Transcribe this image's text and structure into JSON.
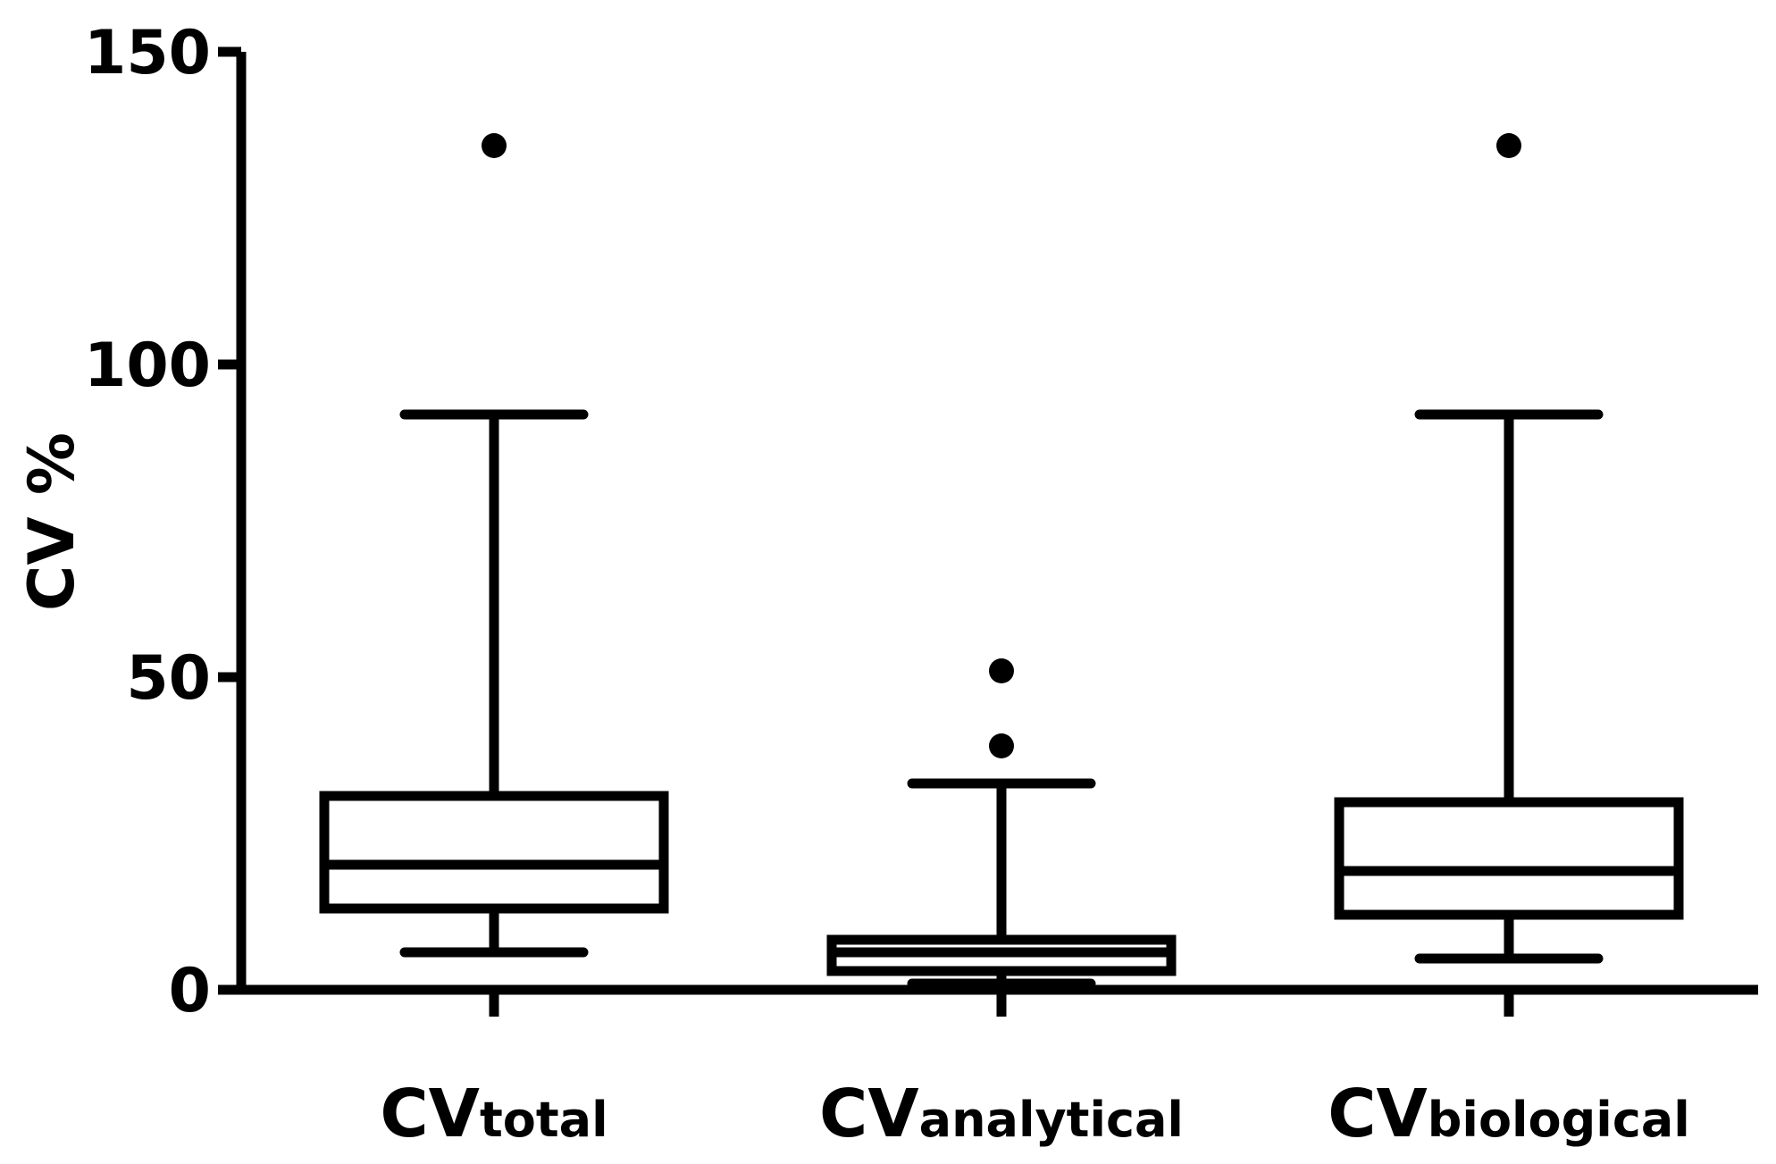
{
  "chart_data": {
    "type": "box",
    "title": "",
    "ylabel": "CV %",
    "xlabel": "",
    "ylim": [
      0,
      150
    ],
    "yticks": [
      0,
      50,
      100,
      150
    ],
    "grid": false,
    "legend": "none",
    "categories": [
      {
        "main": "CV",
        "sub": "total"
      },
      {
        "main": "CV",
        "sub": "analytical"
      },
      {
        "main": "CV",
        "sub": "biological"
      }
    ],
    "boxes": [
      {
        "whisker_low": 6,
        "q1": 13,
        "median": 20,
        "q3": 31,
        "whisker_high": 92,
        "outliers": [
          135
        ]
      },
      {
        "whisker_low": 1,
        "q1": 3,
        "median": 6,
        "q3": 8,
        "whisker_high": 33,
        "outliers": [
          39,
          51
        ]
      },
      {
        "whisker_low": 5,
        "q1": 12,
        "median": 19,
        "q3": 30,
        "whisker_high": 92,
        "outliers": [
          135
        ]
      }
    ],
    "colors": {
      "line": "#000000",
      "background": "#ffffff"
    }
  }
}
